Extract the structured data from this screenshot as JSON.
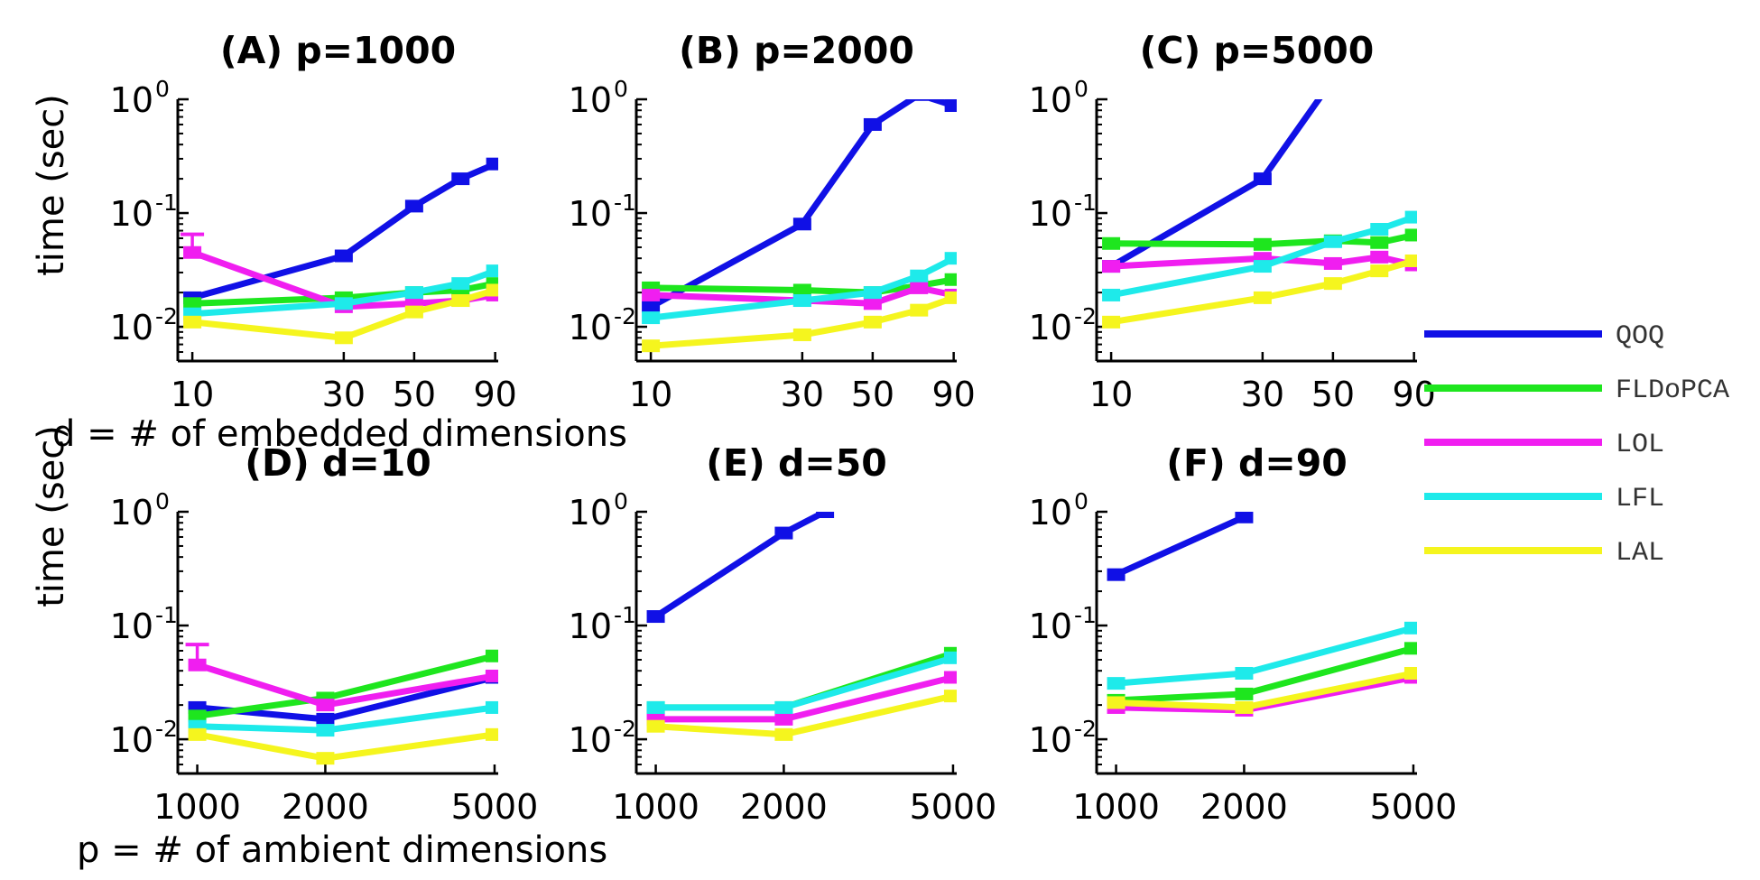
{
  "chart_data": {
    "type": "line",
    "yscale": "log",
    "ylim": [
      0.005,
      1
    ],
    "ytick_base": "10",
    "ytick_exponents": [
      "0",
      "-1",
      "-2"
    ],
    "row_xlabels": [
      "d = # of embedded dimensions",
      "p = # of ambient dimensions"
    ],
    "ylabel": "time (sec)",
    "legend": {
      "placement": "right",
      "entries": [
        {
          "label": "QOQ",
          "color": "#1010e6"
        },
        {
          "label": "FLDoPCA",
          "color": "#1ee61e"
        },
        {
          "label": "LOL",
          "color": "#f01ef0"
        },
        {
          "label": "LFL",
          "color": "#1eeaea"
        },
        {
          "label": "LAL",
          "color": "#f5f51e"
        }
      ]
    },
    "panels": [
      {
        "title": "(A) p=1000",
        "xlim": [
          9,
          92
        ],
        "xticks": [
          10,
          30,
          50,
          90
        ],
        "xticklabels": [
          "10",
          "30",
          "50",
          "90"
        ],
        "series": [
          {
            "x": [
              10,
              30,
              50,
              70,
              90
            ],
            "y": [
              0.018,
              0.042,
              0.115,
              0.2,
              0.27
            ]
          },
          {
            "x": [
              10,
              30,
              50,
              70,
              90
            ],
            "y": [
              0.016,
              0.018,
              0.02,
              0.021,
              0.024
            ]
          },
          {
            "x": [
              10,
              30,
              50,
              70,
              90
            ],
            "y": [
              0.045,
              0.015,
              0.016,
              0.017,
              0.019
            ],
            "err": [
              0.065,
              null,
              null,
              null,
              null
            ]
          },
          {
            "x": [
              10,
              30,
              50,
              70,
              90
            ],
            "y": [
              0.013,
              0.016,
              0.02,
              0.024,
              0.031
            ]
          },
          {
            "x": [
              10,
              30,
              50,
              70,
              90
            ],
            "y": [
              0.011,
              0.008,
              0.0135,
              0.017,
              0.021
            ]
          }
        ]
      },
      {
        "title": "(B) p=2000",
        "xlim": [
          9,
          92
        ],
        "xticks": [
          10,
          30,
          50,
          90
        ],
        "xticklabels": [
          "10",
          "30",
          "50",
          "90"
        ],
        "series": [
          {
            "x": [
              10,
              30,
              50,
              70,
              90
            ],
            "y": [
              0.015,
              0.08,
              0.6,
              1.1,
              0.88
            ]
          },
          {
            "x": [
              10,
              30,
              50,
              70,
              90
            ],
            "y": [
              0.022,
              0.021,
              0.02,
              0.023,
              0.026
            ]
          },
          {
            "x": [
              10,
              30,
              50,
              70,
              90
            ],
            "y": [
              0.019,
              0.017,
              0.016,
              0.022,
              0.019
            ]
          },
          {
            "x": [
              10,
              30,
              50,
              70,
              90
            ],
            "y": [
              0.012,
              0.017,
              0.02,
              0.028,
              0.04
            ]
          },
          {
            "x": [
              10,
              30,
              50,
              70,
              90
            ],
            "y": [
              0.0068,
              0.0085,
              0.011,
              0.014,
              0.018
            ]
          }
        ]
      },
      {
        "title": "(C) p=5000",
        "xlim": [
          9,
          92
        ],
        "xticks": [
          10,
          30,
          50,
          90
        ],
        "xticklabels": [
          "10",
          "30",
          "50",
          "90"
        ],
        "series": [
          {
            "x": [
              10,
              30,
              50
            ],
            "y": [
              0.034,
              0.2,
              1.5
            ]
          },
          {
            "x": [
              10,
              30,
              50,
              70,
              90
            ],
            "y": [
              0.054,
              0.053,
              0.057,
              0.055,
              0.064
            ]
          },
          {
            "x": [
              10,
              30,
              50,
              70,
              90
            ],
            "y": [
              0.034,
              0.04,
              0.036,
              0.041,
              0.035
            ]
          },
          {
            "x": [
              10,
              30,
              50,
              70,
              90
            ],
            "y": [
              0.019,
              0.034,
              0.056,
              0.072,
              0.092
            ]
          },
          {
            "x": [
              10,
              30,
              50,
              70,
              90
            ],
            "y": [
              0.011,
              0.018,
              0.024,
              0.031,
              0.038
            ]
          }
        ]
      },
      {
        "title": "(D) d=10",
        "xlim": [
          900,
          5100
        ],
        "xticks": [
          1000,
          2000,
          5000
        ],
        "xticklabels": [
          "1000",
          "2000",
          "5000"
        ],
        "series": [
          {
            "x": [
              1000,
              2000,
              5000
            ],
            "y": [
              0.019,
              0.015,
              0.035
            ]
          },
          {
            "x": [
              1000,
              2000,
              5000
            ],
            "y": [
              0.016,
              0.023,
              0.054
            ]
          },
          {
            "x": [
              1000,
              2000,
              5000
            ],
            "y": [
              0.045,
              0.02,
              0.036
            ],
            "err": [
              0.068,
              null,
              null
            ]
          },
          {
            "x": [
              1000,
              2000,
              5000
            ],
            "y": [
              0.013,
              0.012,
              0.019
            ]
          },
          {
            "x": [
              1000,
              2000,
              5000
            ],
            "y": [
              0.011,
              0.0068,
              0.011
            ]
          }
        ]
      },
      {
        "title": "(E) d=50",
        "xlim": [
          900,
          5100
        ],
        "xticks": [
          1000,
          2000,
          5000
        ],
        "xticklabels": [
          "1000",
          "2000",
          "5000"
        ],
        "series": [
          {
            "x": [
              1000,
              2000,
              2500
            ],
            "y": [
              0.12,
              0.65,
              1.0
            ]
          },
          {
            "x": [
              1000,
              2000,
              5000
            ],
            "y": [
              0.019,
              0.019,
              0.057
            ]
          },
          {
            "x": [
              1000,
              2000,
              5000
            ],
            "y": [
              0.015,
              0.015,
              0.035
            ]
          },
          {
            "x": [
              1000,
              2000,
              5000
            ],
            "y": [
              0.019,
              0.019,
              0.052
            ]
          },
          {
            "x": [
              1000,
              2000,
              5000
            ],
            "y": [
              0.013,
              0.011,
              0.024
            ]
          }
        ]
      },
      {
        "title": "(F) d=90",
        "xlim": [
          900,
          5100
        ],
        "xticks": [
          1000,
          2000,
          5000
        ],
        "xticklabels": [
          "1000",
          "2000",
          "5000"
        ],
        "series": [
          {
            "x": [
              1000,
              2000
            ],
            "y": [
              0.28,
              0.9
            ]
          },
          {
            "x": [
              1000,
              2000,
              5000
            ],
            "y": [
              0.022,
              0.025,
              0.063
            ]
          },
          {
            "x": [
              1000,
              2000,
              5000
            ],
            "y": [
              0.019,
              0.018,
              0.035
            ]
          },
          {
            "x": [
              1000,
              2000,
              5000
            ],
            "y": [
              0.031,
              0.038,
              0.095
            ]
          },
          {
            "x": [
              1000,
              2000,
              5000
            ],
            "y": [
              0.021,
              0.019,
              0.038
            ]
          }
        ]
      }
    ]
  }
}
